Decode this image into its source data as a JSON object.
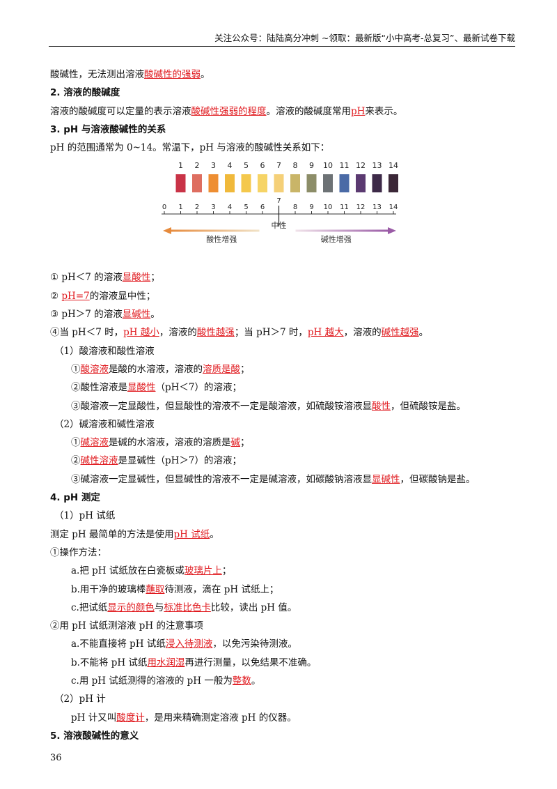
{
  "header": {
    "text": "关注公众号：陆陆高分冲刺  ~领取：最新版“小中高考-总复习”、最新试卷下载"
  },
  "lines": [
    {
      "cls": "",
      "segs": [
        [
          "酸碱性，无法测出溶液",
          0
        ],
        [
          "酸碱性的强弱",
          1
        ],
        [
          "。",
          0
        ]
      ]
    },
    {
      "cls": "h",
      "segs": [
        [
          "2. 溶液的酸碱度",
          0
        ]
      ]
    },
    {
      "cls": "",
      "segs": [
        [
          "溶液的酸碱度可以定量的表示溶液",
          0
        ],
        [
          "酸碱性强弱的程度",
          1
        ],
        [
          "。溶液的酸碱度常用",
          0
        ],
        [
          "pH",
          1
        ],
        [
          "来表示。",
          0
        ]
      ]
    },
    {
      "cls": "h",
      "segs": [
        [
          "3. pH 与溶液酸碱性的关系",
          0
        ]
      ]
    },
    {
      "cls": "",
      "segs": [
        [
          "pH 的范围通常为 0~14。常温下，pH 与溶液的酸碱性关系如下：",
          0
        ]
      ]
    },
    {
      "fig": true
    },
    {
      "cls": "",
      "segs": [
        [
          "① pH＜7 的溶液",
          0
        ],
        [
          "显酸性",
          1
        ],
        [
          "；",
          0
        ]
      ]
    },
    {
      "cls": "",
      "segs": [
        [
          "② ",
          0
        ],
        [
          "pH=7",
          1
        ],
        [
          "的溶液显中性；",
          0
        ]
      ]
    },
    {
      "cls": "",
      "segs": [
        [
          "③ pH＞7 的溶液",
          0
        ],
        [
          "显碱性",
          1
        ],
        [
          "。",
          0
        ]
      ]
    },
    {
      "cls": "",
      "segs": [
        [
          "④当 pH＜7 时，",
          0
        ],
        [
          "pH 越小",
          1
        ],
        [
          "，溶液的",
          0
        ],
        [
          "酸性越强",
          1
        ],
        [
          "；当 pH＞7 时，",
          0
        ],
        [
          "pH 越大",
          1
        ],
        [
          "，溶液的",
          0
        ],
        [
          "碱性越强",
          1
        ],
        [
          "。",
          0
        ]
      ]
    },
    {
      "cls": "ind1",
      "segs": [
        [
          "（1）酸溶液和酸性溶液",
          0
        ]
      ]
    },
    {
      "cls": "ind2",
      "segs": [
        [
          "①",
          0
        ],
        [
          "酸溶液",
          1
        ],
        [
          "是酸的水溶液，溶液的",
          0
        ],
        [
          "溶质是酸",
          1
        ],
        [
          "；",
          0
        ]
      ]
    },
    {
      "cls": "ind2",
      "segs": [
        [
          "②酸性溶液是",
          0
        ],
        [
          "显酸性",
          1
        ],
        [
          "（pH＜7）的溶液；",
          0
        ]
      ]
    },
    {
      "cls": "ind2",
      "segs": [
        [
          "③酸溶液一定显酸性，但显酸性的溶液不一定是酸溶液，如硫酸铵溶液显",
          0
        ],
        [
          "酸性",
          1
        ],
        [
          "，但硫酸铵是盐。",
          0
        ]
      ]
    },
    {
      "cls": "ind1",
      "segs": [
        [
          "（2）碱溶液和碱性溶液",
          0
        ]
      ]
    },
    {
      "cls": "ind2",
      "segs": [
        [
          "①",
          0
        ],
        [
          "碱溶液",
          1
        ],
        [
          "是碱的水溶液，溶液的溶质是",
          0
        ],
        [
          "碱",
          1
        ],
        [
          "；",
          0
        ]
      ]
    },
    {
      "cls": "ind2",
      "segs": [
        [
          "②",
          0
        ],
        [
          "碱性溶液",
          1
        ],
        [
          "是显碱性（pH＞7）的溶液；",
          0
        ]
      ]
    },
    {
      "cls": "ind2",
      "segs": [
        [
          "③碱溶液一定显碱性，但显碱性的溶液不一定是碱溶液，如碳酸钠溶液显",
          0
        ],
        [
          "显碱性",
          1
        ],
        [
          "，但碳酸钠是盐。",
          0
        ]
      ]
    },
    {
      "cls": "h",
      "segs": [
        [
          "4. pH 测定",
          0
        ]
      ]
    },
    {
      "cls": "ind1",
      "segs": [
        [
          "（1）pH 试纸",
          0
        ]
      ]
    },
    {
      "cls": "",
      "segs": [
        [
          "测定 pH 最简单的方法是使用",
          0
        ],
        [
          "pH 试纸",
          1
        ],
        [
          "。",
          0
        ]
      ]
    },
    {
      "cls": "",
      "segs": [
        [
          "①操作方法：",
          0
        ]
      ]
    },
    {
      "cls": "ind2",
      "segs": [
        [
          "a.把 pH 试纸放在白瓷板或",
          0
        ],
        [
          "玻璃片上",
          1
        ],
        [
          "；",
          0
        ]
      ]
    },
    {
      "cls": "ind2",
      "segs": [
        [
          "b.用干净的玻璃棒",
          0
        ],
        [
          "蘸取",
          1
        ],
        [
          "待测液，滴在 pH 试纸上；",
          0
        ]
      ]
    },
    {
      "cls": "ind2",
      "segs": [
        [
          "c.把试纸",
          0
        ],
        [
          "显示的颜色",
          1
        ],
        [
          "与",
          0
        ],
        [
          "标准比色卡",
          1
        ],
        [
          "比较，读出 pH 值。",
          0
        ]
      ]
    },
    {
      "cls": "",
      "segs": [
        [
          "②用 pH 试纸测溶液 pH 的注意事项",
          0
        ]
      ]
    },
    {
      "cls": "ind2",
      "segs": [
        [
          "a.不能直接将 pH 试纸",
          0
        ],
        [
          "浸入待测液",
          1
        ],
        [
          "，以免污染待测液。",
          0
        ]
      ]
    },
    {
      "cls": "ind2",
      "segs": [
        [
          "b.不能将 pH 试纸",
          0
        ],
        [
          "用水润湿",
          1
        ],
        [
          "再进行测量，以免结果不准确。",
          0
        ]
      ]
    },
    {
      "cls": "ind2",
      "segs": [
        [
          "c.用 pH 试纸测得的溶液的 pH 一般为",
          0
        ],
        [
          "整数",
          1
        ],
        [
          "。",
          0
        ]
      ]
    },
    {
      "cls": "ind1",
      "segs": [
        [
          "（2）pH 计",
          0
        ]
      ]
    },
    {
      "cls": "ind2",
      "segs": [
        [
          "pH 计又叫",
          0
        ],
        [
          "酸度计",
          1
        ],
        [
          "，是用来精确测定溶液 pH 的仪器。",
          0
        ]
      ]
    },
    {
      "cls": "h",
      "segs": [
        [
          "5. 溶液酸碱性的意义",
          0
        ]
      ]
    }
  ],
  "ph_scale": {
    "swatch_labels": [
      "1",
      "2",
      "3",
      "4",
      "5",
      "6",
      "7",
      "8",
      "9",
      "10",
      "11",
      "12",
      "13",
      "14"
    ],
    "swatch_colors": [
      "#c93347",
      "#de6e60",
      "#ee8e32",
      "#f0b93b",
      "#f4c84c",
      "#f6d466",
      "#f5d078",
      "#c9b568",
      "#8c8d68",
      "#6d7275",
      "#4a6aa6",
      "#5b3a71",
      "#3d2a48",
      "#3b2737"
    ],
    "tick_labels": [
      "0",
      "1",
      "2",
      "3",
      "4",
      "5",
      "6",
      "7",
      "8",
      "9",
      "10",
      "11",
      "12",
      "13",
      "14"
    ],
    "neutral": "中性",
    "acid": "酸性增强",
    "base": "碱性增强"
  },
  "page_number": "36"
}
